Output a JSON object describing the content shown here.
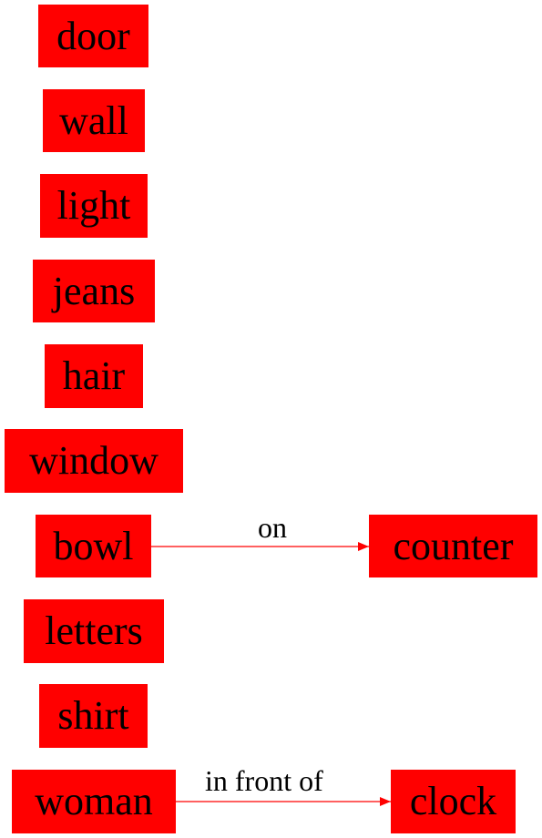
{
  "colors": {
    "node_fill": "#ff0000",
    "edge": "#ff0000",
    "text": "#000000"
  },
  "nodes": {
    "door": "door",
    "wall": "wall",
    "light": "light",
    "jeans": "jeans",
    "hair": "hair",
    "window": "window",
    "bowl": "bowl",
    "counter": "counter",
    "letters": "letters",
    "shirt": "shirt",
    "woman": "woman",
    "clock": "clock"
  },
  "edges": [
    {
      "from": "bowl",
      "to": "counter",
      "label": "on"
    },
    {
      "from": "woman",
      "to": "clock",
      "label": "in front of"
    }
  ]
}
